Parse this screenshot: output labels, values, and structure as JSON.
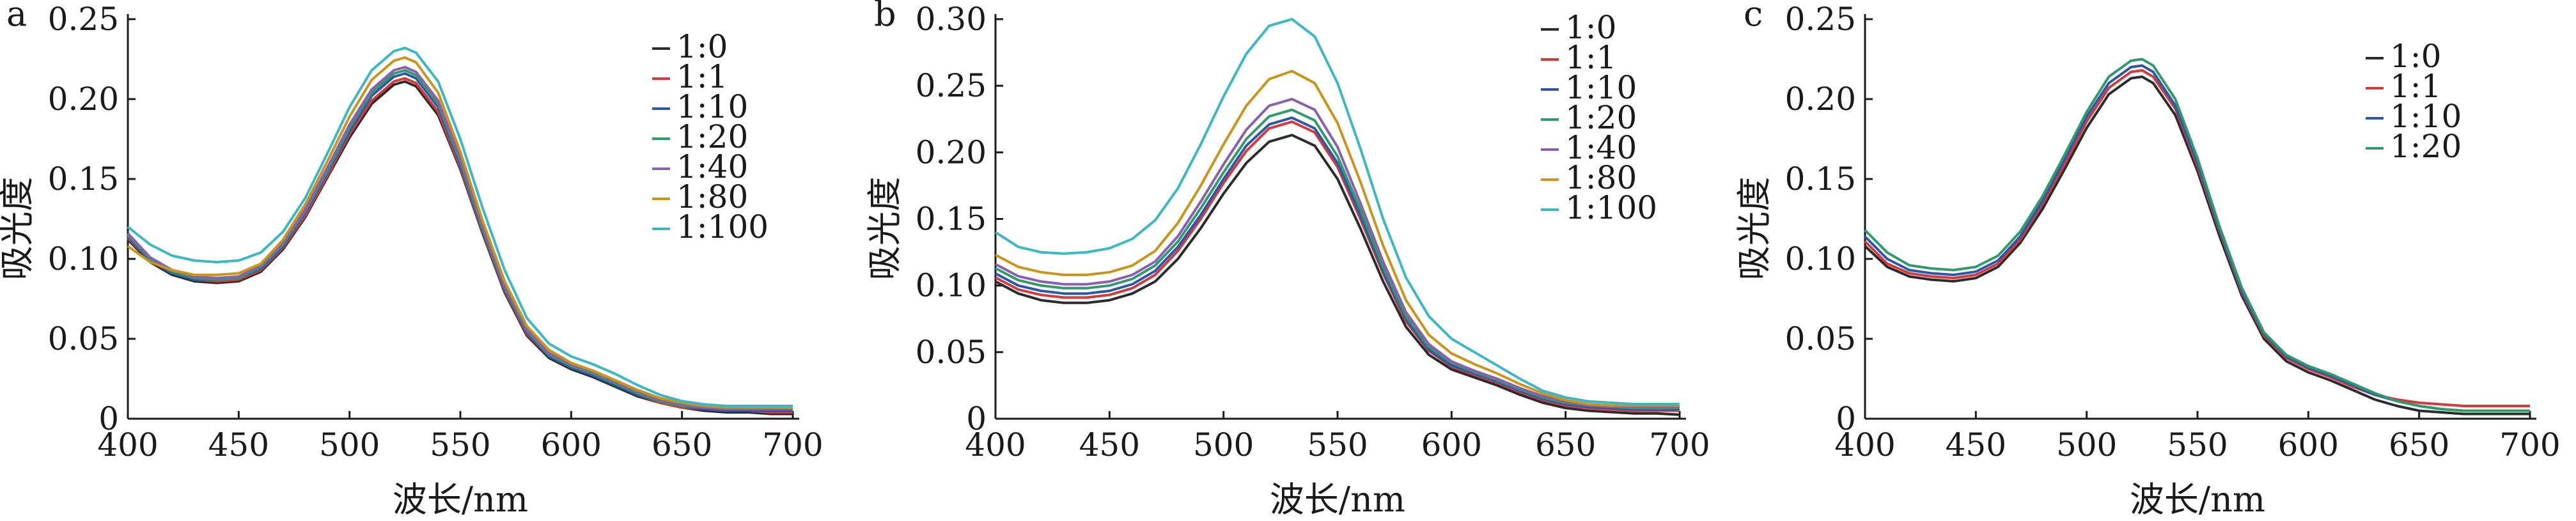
{
  "chart_data": [
    {
      "panel": "a",
      "type": "line",
      "xlabel": "波长/nm",
      "ylabel": "吸光度",
      "xlim": [
        400,
        700
      ],
      "ylim": [
        0,
        0.25
      ],
      "x_ticks": [
        "400",
        "450",
        "500",
        "550",
        "600",
        "650",
        "700"
      ],
      "y_ticks": [
        "0",
        "0.05",
        "0.10",
        "0.15",
        "0.20",
        "0.25"
      ],
      "legend_position": "top-right",
      "x": [
        400,
        410,
        420,
        430,
        440,
        450,
        460,
        470,
        480,
        490,
        500,
        510,
        520,
        525,
        530,
        540,
        550,
        560,
        570,
        580,
        590,
        600,
        610,
        620,
        630,
        640,
        650,
        660,
        670,
        680,
        690,
        700
      ],
      "series": [
        {
          "name": "1:0",
          "color": "#2b2b2b",
          "values": [
            0.112,
            0.098,
            0.09,
            0.086,
            0.085,
            0.086,
            0.092,
            0.106,
            0.126,
            0.151,
            0.176,
            0.197,
            0.209,
            0.211,
            0.208,
            0.19,
            0.156,
            0.116,
            0.079,
            0.052,
            0.038,
            0.031,
            0.026,
            0.02,
            0.014,
            0.01,
            0.007,
            0.005,
            0.004,
            0.004,
            0.003,
            0.003
          ]
        },
        {
          "name": "1:1",
          "color": "#d43a3a",
          "values": [
            0.113,
            0.099,
            0.091,
            0.087,
            0.086,
            0.087,
            0.093,
            0.107,
            0.127,
            0.152,
            0.178,
            0.199,
            0.211,
            0.213,
            0.21,
            0.192,
            0.157,
            0.117,
            0.08,
            0.053,
            0.039,
            0.032,
            0.027,
            0.021,
            0.015,
            0.01,
            0.007,
            0.006,
            0.005,
            0.005,
            0.004,
            0.004
          ]
        },
        {
          "name": "1:10",
          "color": "#2f57a8",
          "values": [
            0.114,
            0.099,
            0.091,
            0.087,
            0.087,
            0.088,
            0.094,
            0.108,
            0.129,
            0.154,
            0.18,
            0.202,
            0.214,
            0.216,
            0.213,
            0.195,
            0.159,
            0.118,
            0.081,
            0.054,
            0.039,
            0.032,
            0.027,
            0.021,
            0.015,
            0.011,
            0.008,
            0.006,
            0.005,
            0.005,
            0.005,
            0.005
          ]
        },
        {
          "name": "1:20",
          "color": "#2f9a6a",
          "values": [
            0.115,
            0.1,
            0.092,
            0.088,
            0.087,
            0.088,
            0.095,
            0.109,
            0.13,
            0.155,
            0.182,
            0.204,
            0.216,
            0.218,
            0.215,
            0.197,
            0.161,
            0.119,
            0.082,
            0.055,
            0.04,
            0.033,
            0.028,
            0.022,
            0.016,
            0.011,
            0.008,
            0.007,
            0.006,
            0.006,
            0.006,
            0.006
          ]
        },
        {
          "name": "1:40",
          "color": "#8a5fb0",
          "values": [
            0.116,
            0.101,
            0.093,
            0.089,
            0.088,
            0.089,
            0.096,
            0.11,
            0.131,
            0.157,
            0.184,
            0.206,
            0.218,
            0.22,
            0.217,
            0.199,
            0.163,
            0.121,
            0.083,
            0.056,
            0.041,
            0.034,
            0.029,
            0.023,
            0.017,
            0.012,
            0.009,
            0.007,
            0.006,
            0.006,
            0.006,
            0.006
          ]
        },
        {
          "name": "1:80",
          "color": "#c9951a",
          "values": [
            0.108,
            0.098,
            0.093,
            0.09,
            0.09,
            0.091,
            0.097,
            0.112,
            0.134,
            0.161,
            0.189,
            0.212,
            0.224,
            0.226,
            0.223,
            0.204,
            0.167,
            0.124,
            0.086,
            0.058,
            0.043,
            0.035,
            0.03,
            0.024,
            0.018,
            0.013,
            0.01,
            0.008,
            0.007,
            0.007,
            0.007,
            0.007
          ]
        },
        {
          "name": "1:100",
          "color": "#3bb8c4",
          "values": [
            0.12,
            0.109,
            0.102,
            0.099,
            0.098,
            0.099,
            0.104,
            0.117,
            0.138,
            0.166,
            0.195,
            0.218,
            0.23,
            0.232,
            0.229,
            0.211,
            0.175,
            0.132,
            0.093,
            0.063,
            0.047,
            0.039,
            0.034,
            0.028,
            0.021,
            0.015,
            0.011,
            0.009,
            0.008,
            0.008,
            0.008,
            0.008
          ]
        }
      ]
    },
    {
      "panel": "b",
      "type": "line",
      "xlabel": "波长/nm",
      "ylabel": "吸光度",
      "xlim": [
        400,
        700
      ],
      "ylim": [
        0,
        0.3
      ],
      "x_ticks": [
        "400",
        "450",
        "500",
        "550",
        "600",
        "650",
        "700"
      ],
      "y_ticks": [
        "0",
        "0.05",
        "0.10",
        "0.15",
        "0.20",
        "0.25",
        "0.30"
      ],
      "legend_position": "top-right",
      "x": [
        400,
        410,
        420,
        430,
        440,
        450,
        460,
        470,
        480,
        490,
        500,
        510,
        520,
        530,
        540,
        550,
        560,
        570,
        580,
        590,
        600,
        610,
        620,
        630,
        640,
        650,
        660,
        670,
        680,
        690,
        700
      ],
      "series": [
        {
          "name": "1:0",
          "color": "#2b2b2b",
          "values": [
            0.103,
            0.094,
            0.089,
            0.087,
            0.087,
            0.089,
            0.094,
            0.103,
            0.12,
            0.143,
            0.169,
            0.192,
            0.208,
            0.213,
            0.205,
            0.18,
            0.143,
            0.103,
            0.069,
            0.048,
            0.037,
            0.031,
            0.025,
            0.018,
            0.012,
            0.008,
            0.006,
            0.005,
            0.004,
            0.004,
            0.003
          ]
        },
        {
          "name": "1:1",
          "color": "#d43a3a",
          "values": [
            0.106,
            0.097,
            0.093,
            0.091,
            0.091,
            0.093,
            0.098,
            0.108,
            0.126,
            0.15,
            0.177,
            0.201,
            0.218,
            0.223,
            0.215,
            0.189,
            0.15,
            0.109,
            0.073,
            0.051,
            0.039,
            0.033,
            0.027,
            0.02,
            0.014,
            0.01,
            0.008,
            0.007,
            0.006,
            0.006,
            0.006
          ]
        },
        {
          "name": "1:10",
          "color": "#2f57a8",
          "values": [
            0.109,
            0.1,
            0.096,
            0.094,
            0.094,
            0.096,
            0.101,
            0.111,
            0.129,
            0.153,
            0.18,
            0.205,
            0.221,
            0.226,
            0.218,
            0.192,
            0.153,
            0.111,
            0.075,
            0.052,
            0.04,
            0.034,
            0.028,
            0.021,
            0.015,
            0.011,
            0.009,
            0.008,
            0.007,
            0.007,
            0.007
          ]
        },
        {
          "name": "1:20",
          "color": "#2f9a6a",
          "values": [
            0.113,
            0.104,
            0.1,
            0.098,
            0.098,
            0.1,
            0.105,
            0.115,
            0.133,
            0.158,
            0.185,
            0.21,
            0.227,
            0.232,
            0.224,
            0.197,
            0.157,
            0.114,
            0.077,
            0.054,
            0.042,
            0.035,
            0.029,
            0.022,
            0.016,
            0.012,
            0.01,
            0.009,
            0.008,
            0.008,
            0.008
          ]
        },
        {
          "name": "1:40",
          "color": "#8a5fb0",
          "values": [
            0.116,
            0.107,
            0.103,
            0.101,
            0.101,
            0.103,
            0.108,
            0.118,
            0.137,
            0.163,
            0.191,
            0.217,
            0.235,
            0.24,
            0.232,
            0.204,
            0.162,
            0.118,
            0.08,
            0.056,
            0.043,
            0.036,
            0.03,
            0.023,
            0.017,
            0.013,
            0.01,
            0.009,
            0.009,
            0.009,
            0.009
          ]
        },
        {
          "name": "1:80",
          "color": "#c9951a",
          "values": [
            0.123,
            0.114,
            0.11,
            0.108,
            0.108,
            0.11,
            0.115,
            0.126,
            0.147,
            0.175,
            0.206,
            0.235,
            0.255,
            0.261,
            0.252,
            0.222,
            0.178,
            0.13,
            0.089,
            0.063,
            0.049,
            0.041,
            0.034,
            0.026,
            0.019,
            0.014,
            0.011,
            0.01,
            0.01,
            0.01,
            0.01
          ]
        },
        {
          "name": "1:100",
          "color": "#3bb8c4",
          "values": [
            0.14,
            0.129,
            0.125,
            0.124,
            0.125,
            0.128,
            0.135,
            0.149,
            0.173,
            0.206,
            0.242,
            0.274,
            0.295,
            0.3,
            0.287,
            0.252,
            0.203,
            0.15,
            0.106,
            0.077,
            0.06,
            0.05,
            0.04,
            0.03,
            0.021,
            0.016,
            0.013,
            0.012,
            0.011,
            0.011,
            0.011
          ]
        }
      ]
    },
    {
      "panel": "c",
      "type": "line",
      "xlabel": "波长/nm",
      "ylabel": "吸光度",
      "xlim": [
        400,
        700
      ],
      "ylim": [
        0,
        0.25
      ],
      "x_ticks": [
        "400",
        "450",
        "500",
        "550",
        "600",
        "650",
        "700"
      ],
      "y_ticks": [
        "0",
        "0.05",
        "0.10",
        "0.15",
        "0.20",
        "0.25"
      ],
      "legend_position": "top-right",
      "x": [
        400,
        410,
        420,
        430,
        440,
        450,
        460,
        470,
        480,
        490,
        500,
        510,
        520,
        525,
        530,
        540,
        550,
        560,
        570,
        580,
        590,
        600,
        610,
        620,
        630,
        640,
        650,
        660,
        670,
        680,
        690,
        700
      ],
      "series": [
        {
          "name": "1:0",
          "color": "#2b2b2b",
          "values": [
            0.108,
            0.095,
            0.089,
            0.087,
            0.086,
            0.088,
            0.095,
            0.11,
            0.131,
            0.156,
            0.182,
            0.203,
            0.213,
            0.214,
            0.21,
            0.19,
            0.155,
            0.114,
            0.077,
            0.05,
            0.036,
            0.029,
            0.024,
            0.018,
            0.012,
            0.008,
            0.005,
            0.004,
            0.003,
            0.003,
            0.003,
            0.003
          ]
        },
        {
          "name": "1:1",
          "color": "#d43a3a",
          "values": [
            0.111,
            0.097,
            0.091,
            0.089,
            0.088,
            0.09,
            0.097,
            0.112,
            0.134,
            0.159,
            0.186,
            0.207,
            0.217,
            0.218,
            0.214,
            0.194,
            0.158,
            0.117,
            0.079,
            0.052,
            0.038,
            0.031,
            0.026,
            0.02,
            0.015,
            0.012,
            0.01,
            0.009,
            0.008,
            0.008,
            0.008,
            0.008
          ]
        },
        {
          "name": "1:10",
          "color": "#2f57a8",
          "values": [
            0.114,
            0.1,
            0.093,
            0.091,
            0.09,
            0.092,
            0.099,
            0.114,
            0.136,
            0.162,
            0.189,
            0.21,
            0.22,
            0.221,
            0.217,
            0.196,
            0.16,
            0.118,
            0.08,
            0.053,
            0.039,
            0.032,
            0.027,
            0.021,
            0.015,
            0.011,
            0.008,
            0.006,
            0.005,
            0.005,
            0.005,
            0.005
          ]
        },
        {
          "name": "1:20",
          "color": "#2f9a6a",
          "values": [
            0.118,
            0.104,
            0.096,
            0.094,
            0.093,
            0.095,
            0.102,
            0.117,
            0.139,
            0.165,
            0.192,
            0.214,
            0.224,
            0.225,
            0.221,
            0.2,
            0.163,
            0.12,
            0.082,
            0.054,
            0.04,
            0.033,
            0.028,
            0.022,
            0.016,
            0.011,
            0.008,
            0.006,
            0.005,
            0.005,
            0.005,
            0.005
          ]
        }
      ]
    }
  ]
}
